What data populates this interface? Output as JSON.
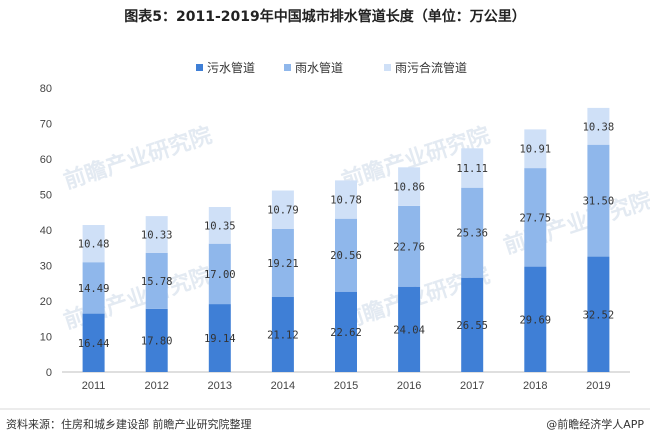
{
  "title": "图表5：2011-2019年中国城市排水管道长度（单位：万公里）",
  "source_text": "资料来源：住房和城乡建设部 前瞻产业研究院整理",
  "brand_text": "@前瞻经济学人APP",
  "watermark_text": "前瞻产业研究院",
  "colors": {
    "sewage": "#3f7fd6",
    "rain": "#8fb7eb",
    "combined": "#cfe0f7"
  },
  "chart_data": {
    "type": "bar",
    "stacked": true,
    "categories": [
      "2011",
      "2012",
      "2013",
      "2014",
      "2015",
      "2016",
      "2017",
      "2018",
      "2019"
    ],
    "series": [
      {
        "name": "污水管道",
        "values": [
          16.44,
          17.8,
          19.14,
          21.12,
          22.62,
          24.04,
          26.55,
          29.69,
          32.52
        ]
      },
      {
        "name": "雨水管道",
        "values": [
          14.49,
          15.78,
          17.0,
          19.21,
          20.56,
          22.76,
          25.36,
          27.75,
          31.5
        ]
      },
      {
        "name": "雨污合流管道",
        "values": [
          10.48,
          10.33,
          10.35,
          10.79,
          10.78,
          10.86,
          11.11,
          10.91,
          10.38
        ]
      }
    ],
    "data_labels": [
      [
        "16.44",
        "17.80",
        "19.14",
        "21.12",
        "22.62",
        "24.04",
        "26.55",
        "29.69",
        "32.52"
      ],
      [
        "14.49",
        "15.78",
        "17.00",
        "19.21",
        "20.56",
        "22.76",
        "25.36",
        "27.75",
        "31.50"
      ],
      [
        "10.48",
        "10.33",
        "10.35",
        "10.79",
        "10.78",
        "10.86",
        "11.11",
        "10.91",
        "10.38"
      ]
    ],
    "ylim": [
      0,
      80
    ],
    "yticks": [
      "0",
      "10",
      "20",
      "30",
      "40",
      "50",
      "60",
      "70",
      "80"
    ],
    "legend_position": "top-center",
    "grid": false
  }
}
